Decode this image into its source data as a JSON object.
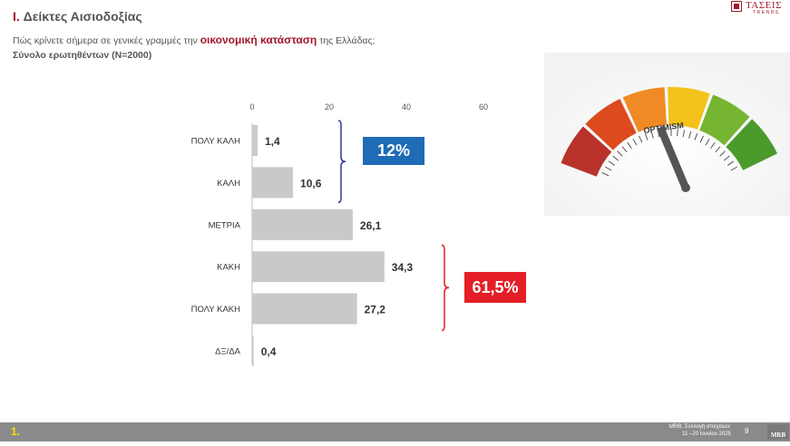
{
  "header": {
    "title_roman": "I.",
    "title_text": "Δείκτες Αισιοδοξίας",
    "question_pre": "Πώς κρίνετε σήμερα σε γενικές γραμμές την",
    "question_keyword": "οικονομική κατάσταση",
    "question_post": "της Ελλάδας;",
    "sample": "Σύνολο ερωτηθέντων (N=2000)"
  },
  "logo": {
    "name": "ΤΑΣΕΙΣ",
    "sub": "TRENDS"
  },
  "chart_data": {
    "type": "bar",
    "orientation": "horizontal",
    "categories": [
      "ΠΟΛΥ ΚΑΛΗ",
      "ΚΑΛΗ",
      "ΜΕΤΡΙΑ",
      "ΚΑΚΗ",
      "ΠΟΛΥ ΚΑΚΗ",
      "ΔΞ/ΔΑ"
    ],
    "values": [
      1.4,
      10.6,
      26.1,
      34.3,
      27.2,
      0.4
    ],
    "value_labels": [
      "1,4",
      "10,6",
      "26,1",
      "34,3",
      "27,2",
      "0,4"
    ],
    "xlim": [
      0,
      60
    ],
    "xticks": [
      0,
      20,
      40,
      60
    ],
    "bar_color": "#c9c9c9",
    "grid": false,
    "groups": [
      {
        "label": "12%",
        "color": "#1f6bb6",
        "bracket_color": "#2e3a8c",
        "covers": [
          "ΠΟΛΥ ΚΑΛΗ",
          "ΚΑΛΗ"
        ]
      },
      {
        "label": "61,5%",
        "color": "#e41e26",
        "bracket_color": "#e41e26",
        "covers": [
          "ΚΑΚΗ",
          "ΠΟΛΥ ΚΑΚΗ"
        ]
      }
    ]
  },
  "gauge": {
    "label": "OPTIMISM",
    "icon": "optimism-gauge-icon"
  },
  "footer": {
    "page_tag": "1.",
    "source_line1": "MRB, Συλλογή στοιχείων:",
    "source_line2": "11 –20 Ιουνίου 2025",
    "page_number": "9",
    "brand": "MRB"
  }
}
